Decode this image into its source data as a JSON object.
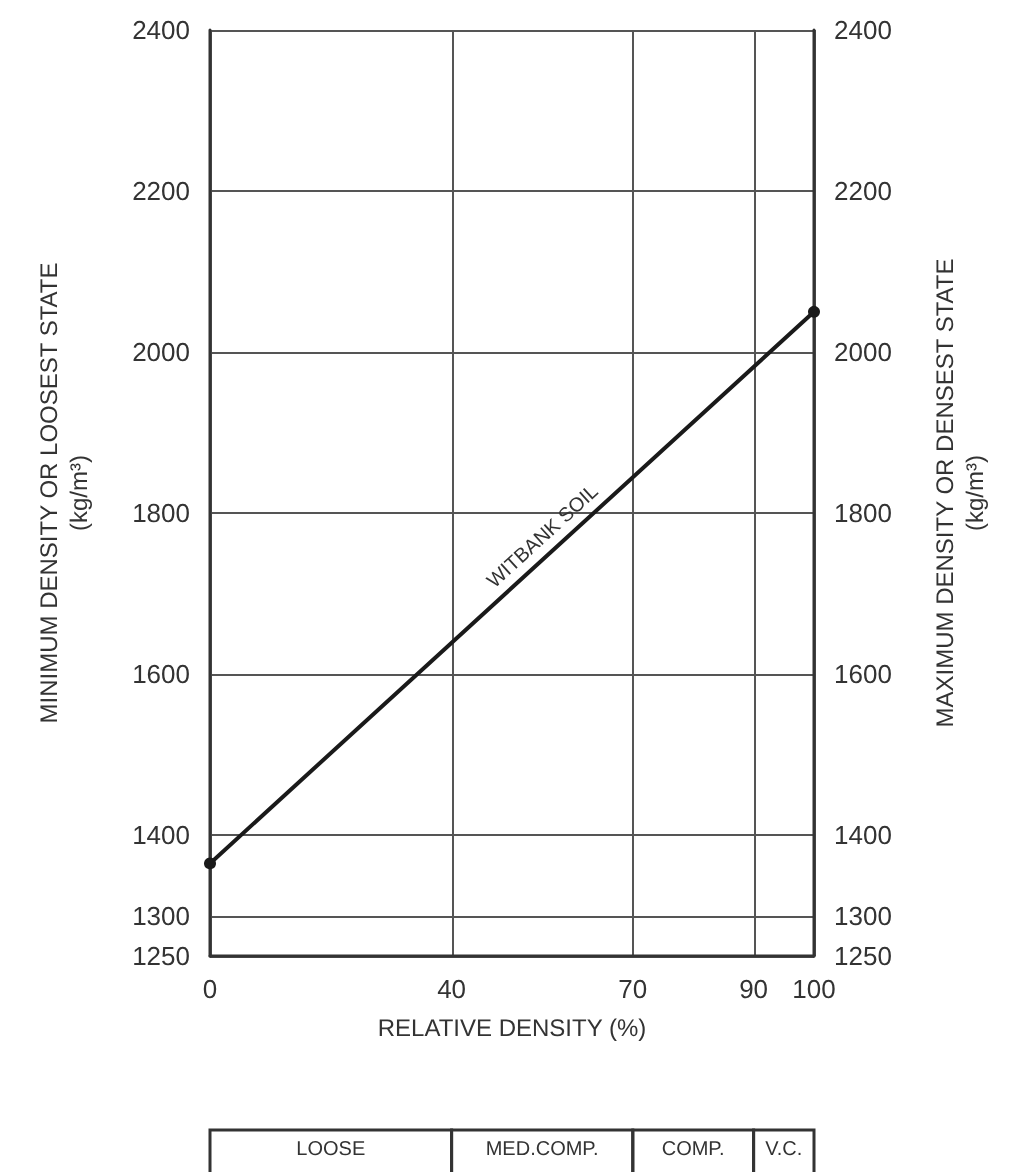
{
  "chart_data": {
    "type": "line",
    "xlabel": "RELATIVE DENSITY (%)",
    "ylabel": "MINIMUM DENSITY OR LOOSEST STATE\n(kg/m³)",
    "y2label": "MAXIMUM DENSITY OR DENSEST STATE\n(kg/m³)",
    "x": [
      0,
      100
    ],
    "series": [
      {
        "name": "WITBANK SOIL",
        "color": "#1a1a1a",
        "values": [
          1365,
          2050
        ]
      }
    ],
    "xlim": [
      0,
      100
    ],
    "xticks": [
      0,
      40,
      70,
      90,
      100
    ],
    "ylim": [
      1250,
      2400
    ],
    "yticks": [
      1250,
      1300,
      1400,
      1600,
      1800,
      2000,
      2200,
      2400
    ],
    "y2lim": [
      1250,
      2400
    ],
    "y2ticks": [
      1250,
      1300,
      1400,
      1600,
      1800,
      2000,
      2200,
      2400
    ],
    "annotations": [
      "LOOSE",
      "MED.COMP.",
      "COMP.",
      "V.C."
    ],
    "grid": true,
    "legend": false,
    "marker": "circle",
    "line_style": "solid"
  }
}
